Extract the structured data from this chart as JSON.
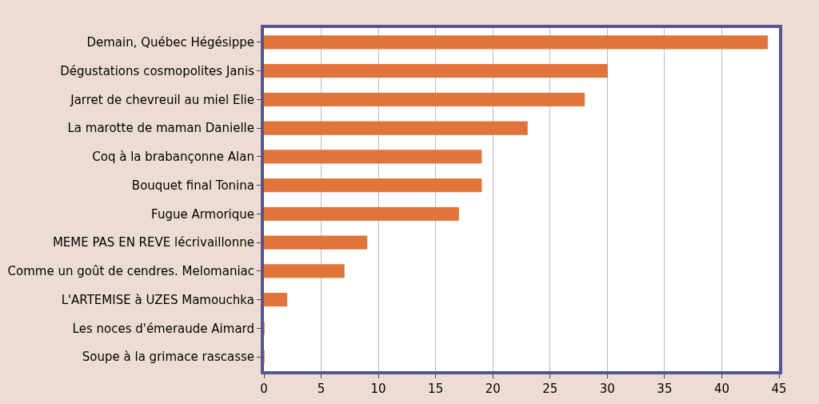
{
  "chart_data": {
    "type": "bar",
    "orientation": "horizontal",
    "categories": [
      "Demain, Québec Hégésippe",
      "Dégustations cosmopolites Janis",
      "Jarret de chevreuil au miel Elie",
      "La marotte de maman Danielle",
      "Coq à la brabançonne Alan",
      "Bouquet final Tonina",
      "Fugue Armorique",
      "MEME PAS EN REVE lécrivaillonne",
      "Comme un goût de cendres. Melomaniac",
      "L'ARTEMISE à UZES Mamouchka",
      "Les noces d'émeraude Aimard",
      "Soupe à la grimace rascasse"
    ],
    "values": [
      44,
      30,
      28,
      23,
      19,
      19,
      17,
      9,
      7,
      2,
      0,
      0
    ],
    "color": "#e0743a",
    "xlim": [
      0,
      45
    ],
    "xticks": [
      0,
      5,
      10,
      15,
      20,
      25,
      30,
      35,
      40,
      45
    ],
    "grid": "x"
  }
}
